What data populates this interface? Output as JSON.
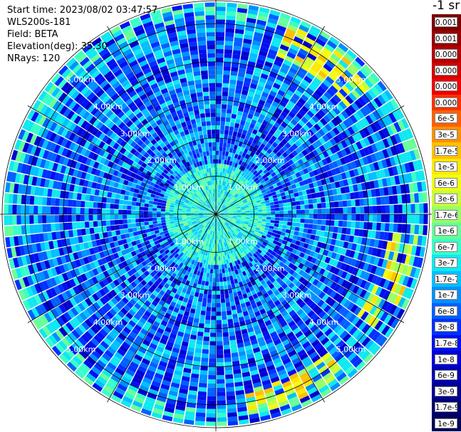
{
  "header": {
    "start_time": "Start time: 2023/08/02 03:47:57",
    "instrument": "WLS200s-181",
    "field": "Field: BETA",
    "elevation": "Elevation(deg): 35.30",
    "nrays": "NRays: 120"
  },
  "colorbar": {
    "title": "-1 sr",
    "labels": [
      "0.0017",
      "0.001",
      "0.0006",
      "0.0003",
      "0.00017",
      "0.0001",
      "6e-5",
      "3e-5",
      "1.7e-5",
      "1e-5",
      "6e-6",
      "3e-6",
      "1.7e-6",
      "1e-6",
      "6e-7",
      "3e-7",
      "1.7e-7",
      "1e-7",
      "6e-8",
      "3e-8",
      "1.7e-8",
      "1e-8",
      "6e-9",
      "3e-9",
      "1.7e-9",
      "1e-9"
    ],
    "colors": [
      "#7a0000",
      "#980000",
      "#b40000",
      "#d20000",
      "#f00000",
      "#ff3000",
      "#ff6000",
      "#ff9000",
      "#ffc000",
      "#ffe800",
      "#f0ff10",
      "#c8ff38",
      "#98ff68",
      "#68ff98",
      "#38ffc8",
      "#10e8f0",
      "#00c0ff",
      "#0090ff",
      "#0060ff",
      "#0030ff",
      "#0010f0",
      "#0000d0",
      "#0000b0",
      "#000090",
      "#000070",
      "#00005a"
    ]
  },
  "chart_data": {
    "type": "heatmap",
    "projection": "polar-ppi",
    "field": "BETA",
    "units": "sr-1",
    "n_rays": 120,
    "elevation_deg": 35.3,
    "range_ring_labels": [
      "1.00km",
      "2.00km",
      "3.00km",
      "4.00km",
      "5.00km"
    ],
    "range_rings_km": [
      1,
      2,
      3,
      4,
      5
    ],
    "max_range_km": 5.6,
    "azimuth_spokes_deg": [
      0,
      30,
      60,
      90,
      120,
      150,
      180,
      210,
      240,
      270,
      300,
      330
    ],
    "dominant_value_range": [
      "1e-8",
      "1.7e-7"
    ],
    "enhanced_sectors": [
      {
        "azimuth_deg": [
          20,
          50
        ],
        "range_km": [
          4.5,
          5.3
        ],
        "value_range": [
          "3e-6",
          "1.7e-5"
        ]
      },
      {
        "azimuth_deg": [
          95,
          125
        ],
        "range_km": [
          4.6,
          5.3
        ],
        "value_range": [
          "3e-6",
          "1.7e-5"
        ]
      },
      {
        "azimuth_deg": [
          140,
          170
        ],
        "range_km": [
          4.7,
          5.3
        ],
        "value_range": [
          "1.7e-6",
          "1.7e-5"
        ]
      }
    ]
  }
}
